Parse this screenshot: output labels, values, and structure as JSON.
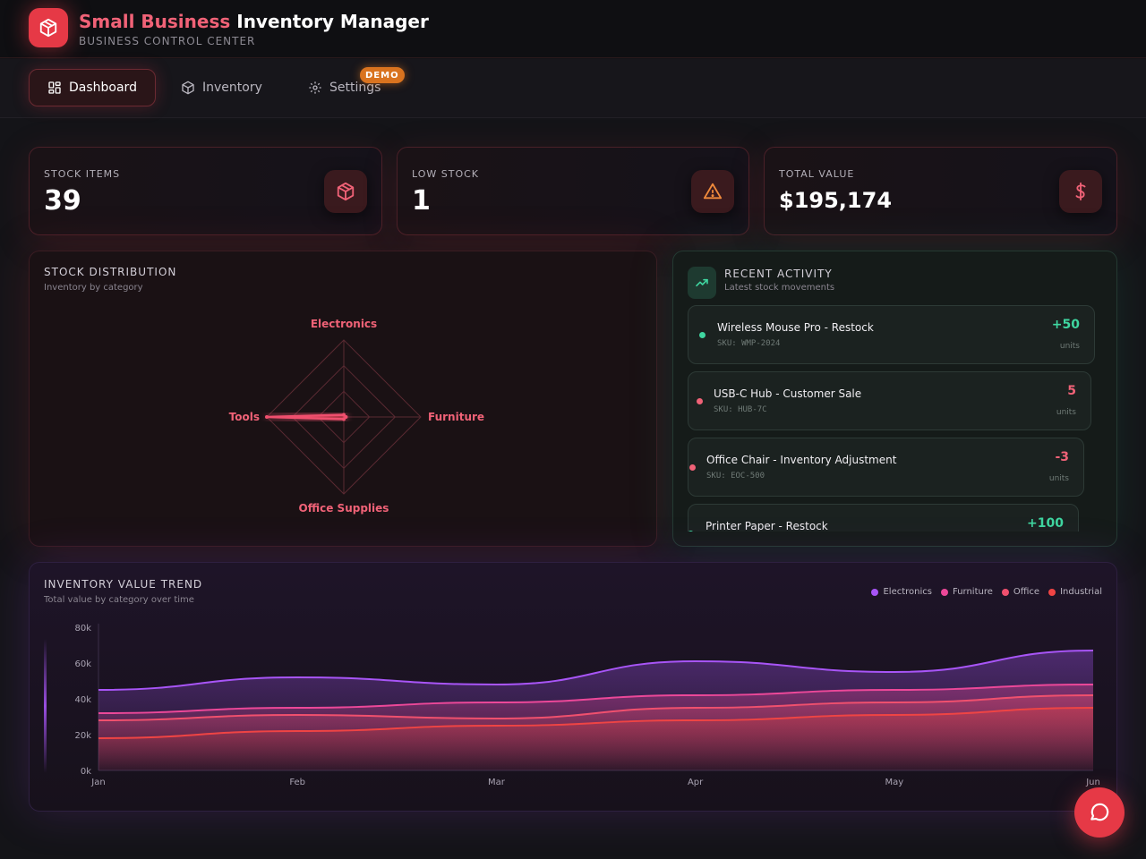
{
  "header": {
    "title_accent": "Small Business",
    "title_rest": "Inventory Manager",
    "subtitle": "BUSINESS CONTROL CENTER",
    "logo_icon": "cube-icon"
  },
  "nav": {
    "tabs": [
      {
        "label": "Dashboard",
        "icon": "grid-icon",
        "active": true
      },
      {
        "label": "Inventory",
        "icon": "box-icon",
        "active": false
      },
      {
        "label": "Settings",
        "icon": "gear-icon",
        "active": false
      }
    ],
    "badge": "DEMO"
  },
  "stats": [
    {
      "label": "STOCK ITEMS",
      "value": "39",
      "icon": "cube-icon",
      "color": "#f06277"
    },
    {
      "label": "LOW STOCK",
      "value": "1",
      "icon": "warning-icon",
      "color": "#f08a3c"
    },
    {
      "label": "TOTAL VALUE",
      "value": "$195,174",
      "icon": "dollar-icon",
      "color": "#f06277"
    }
  ],
  "distribution": {
    "title": "STOCK DISTRIBUTION",
    "subtitle": "Inventory by category"
  },
  "activity": {
    "title": "RECENT ACTIVITY",
    "subtitle": "Latest stock movements",
    "unit_label": "units",
    "items": [
      {
        "name": "Wireless Mouse Pro - Restock",
        "sku": "SKU: WMP-2024",
        "qty": "+50",
        "type": "in"
      },
      {
        "name": "USB-C Hub - Customer Sale",
        "sku": "SKU: HUB-7C",
        "qty": "5",
        "type": "out"
      },
      {
        "name": "Office Chair - Inventory Adjustment",
        "sku": "SKU: EOC-500",
        "qty": "-3",
        "type": "out"
      },
      {
        "name": "Printer Paper - Restock",
        "sku": "",
        "qty": "+100",
        "type": "in"
      }
    ]
  },
  "trend": {
    "title": "INVENTORY VALUE TREND",
    "subtitle": "Total value by category over time"
  },
  "colors": {
    "accent": "#e63946",
    "positive": "#3fd6a0",
    "negative": "#f06277"
  },
  "chart_data": [
    {
      "type": "radar",
      "categories": [
        "Electronics",
        "Furniture",
        "Office Supplies",
        "Tools"
      ],
      "values": [
        1,
        1,
        1,
        36
      ],
      "rmax": 36,
      "rings": 3
    },
    {
      "type": "area",
      "x": [
        "Jan",
        "Feb",
        "Mar",
        "Apr",
        "May",
        "Jun"
      ],
      "yticks": [
        "0k",
        "20k",
        "40k",
        "60k",
        "80k"
      ],
      "ylim": [
        0,
        80000
      ],
      "legend_position": "top-right",
      "series": [
        {
          "name": "Electronics",
          "color": "#a855f7",
          "values": [
            45000,
            52000,
            48000,
            61000,
            55000,
            67000
          ]
        },
        {
          "name": "Furniture",
          "color": "#ec4899",
          "values": [
            32000,
            35000,
            38000,
            42000,
            45000,
            48000
          ]
        },
        {
          "name": "Office",
          "color": "#f0506e",
          "values": [
            28000,
            31000,
            29000,
            35000,
            38000,
            42000
          ]
        },
        {
          "name": "Industrial",
          "color": "#ef4444",
          "values": [
            18000,
            22000,
            25000,
            28000,
            31000,
            35000
          ]
        }
      ]
    }
  ]
}
